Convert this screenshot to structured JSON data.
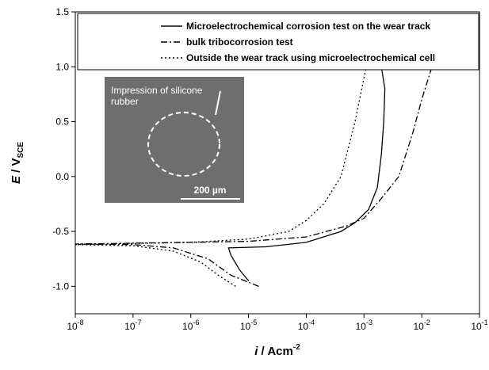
{
  "chart_data": {
    "type": "line",
    "xscale": "log",
    "xlabel": {
      "italic": "i",
      "text": " / Acm",
      "sup": "-2"
    },
    "ylabel": {
      "italic": "E",
      "text": " / V",
      "sub": "SCE"
    },
    "xlim": [
      1e-08,
      0.1
    ],
    "ylim": [
      -1.25,
      1.5
    ],
    "xticks": [
      {
        "value": 1e-08,
        "label": "10",
        "exponent": "-8"
      },
      {
        "value": 1e-07,
        "label": "10",
        "exponent": "-7"
      },
      {
        "value": 1e-06,
        "label": "10",
        "exponent": "-6"
      },
      {
        "value": 1e-05,
        "label": "10",
        "exponent": "-5"
      },
      {
        "value": 0.0001,
        "label": "10",
        "exponent": "-4"
      },
      {
        "value": 0.001,
        "label": "10",
        "exponent": "-3"
      },
      {
        "value": 0.01,
        "label": "10",
        "exponent": "-2"
      },
      {
        "value": 0.1,
        "label": "10",
        "exponent": "-1"
      }
    ],
    "yticks": [
      {
        "value": -1,
        "label": "-1.0"
      },
      -0.5,
      {
        "value": 0,
        "label": "0.0"
      },
      0.5,
      {
        "value": 1,
        "label": "1.0"
      },
      1.5
    ],
    "legend": "top",
    "series": [
      {
        "name": "Microelectrochemical corrosion test on the wear track",
        "color": "#000000",
        "dash": "solid",
        "x": [
          1e-05,
          7e-06,
          5e-06,
          4.5e-06,
          2e-05,
          0.0001,
          0.0002,
          0.0004,
          0.0007,
          0.0012,
          0.0017,
          0.002,
          0.0022,
          0.0023,
          0.002
        ],
        "values": [
          -0.95,
          -0.85,
          -0.72,
          -0.65,
          -0.64,
          -0.6,
          -0.55,
          -0.5,
          -0.42,
          -0.3,
          -0.1,
          0.2,
          0.5,
          0.8,
          1.0
        ]
      },
      {
        "name": "bulk tribocorrosion test",
        "color": "#000000",
        "dash": "dashdot",
        "x": [
          1.5e-05,
          5e-06,
          2e-06,
          5e-07,
          1e-07,
          1e-08,
          1e-06,
          1e-05,
          0.0001,
          0.0005,
          0.001,
          0.002,
          0.004,
          0.007,
          0.01,
          0.015
        ],
        "values": [
          -1.0,
          -0.9,
          -0.75,
          -0.65,
          -0.62,
          -0.615,
          -0.6,
          -0.59,
          -0.55,
          -0.45,
          -0.38,
          -0.2,
          0.0,
          0.4,
          0.7,
          1.0
        ]
      },
      {
        "name": "Outside the wear track using microelectrochemical cell",
        "color": "#000000",
        "dash": "dotted",
        "x": [
          6e-06,
          3e-06,
          1.5e-06,
          5e-07,
          1e-07,
          1e-08,
          1e-06,
          1e-05,
          5e-05,
          0.0001,
          0.0002,
          0.0004,
          0.0007,
          0.001,
          0.0011
        ],
        "values": [
          -1.0,
          -0.9,
          -0.78,
          -0.68,
          -0.63,
          -0.62,
          -0.6,
          -0.57,
          -0.5,
          -0.4,
          -0.25,
          0.0,
          0.5,
          0.9,
          1.0
        ]
      }
    ],
    "inset": {
      "label_lines": [
        "Impression of silicone",
        "rubber"
      ],
      "scale_bar": "200 µm"
    }
  }
}
